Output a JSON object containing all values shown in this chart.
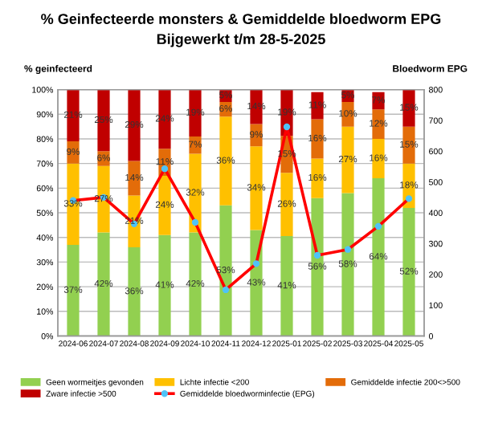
{
  "chart_data": {
    "type": "bar",
    "stacked": true,
    "title": "% Geinfecteerde monsters & Gemiddelde bloedworm EPG",
    "subtitle": "Bijgewerkt t/m 28-5-2025",
    "ylabel": "% geinfecteerd",
    "y2label": "Bloedworm EPG",
    "categories": [
      "2024-06",
      "2024-07",
      "2024-08",
      "2024-09",
      "2024-10",
      "2024-11",
      "2024-12",
      "2025-01",
      "2025-02",
      "2025-03",
      "2025-04",
      "2025-05"
    ],
    "series": [
      {
        "name": "Geen wormeitjes gevonden",
        "color": "#92d050",
        "values": [
          37,
          42,
          36,
          41,
          42,
          53,
          43,
          40.6,
          56,
          58,
          64,
          52
        ],
        "value_labels": [
          "37%",
          "42%",
          "36%",
          "41%",
          "42%",
          "53%",
          "43%",
          "41%",
          "56%",
          "58%",
          "64%",
          "52%"
        ]
      },
      {
        "name": "Lichte infectie <200",
        "color": "#ffc000",
        "values": [
          33,
          27,
          21,
          24,
          32,
          36,
          34,
          25.6,
          16,
          27,
          16,
          18
        ],
        "value_labels": [
          "33%",
          "27%",
          "21%",
          "24%",
          "32%",
          "36%",
          "34%",
          "26%",
          "16%",
          "27%",
          "16%",
          "18%"
        ]
      },
      {
        "name": "Gemiddelde infectie 200<>500",
        "color": "#e36c09",
        "values": [
          9,
          6,
          14,
          11,
          7,
          6,
          9,
          15,
          16,
          10,
          12,
          15
        ],
        "value_labels": [
          "9%",
          "6%",
          "14%",
          "11%",
          "7%",
          "6%",
          "9%",
          "15%",
          "16%",
          "10%",
          "12%",
          "15%"
        ]
      },
      {
        "name": "Zware infectie >500",
        "color": "#c00000",
        "values": [
          21,
          25,
          29,
          24,
          19,
          5,
          14,
          18.8,
          11,
          5,
          7,
          15
        ],
        "value_labels": [
          "21%",
          "25%",
          "29%",
          "24%",
          "19%",
          "5%",
          "14%",
          "19%",
          "11%",
          "5%",
          "7%",
          "15%"
        ]
      },
      {
        "name": "Gemiddelde bloedworminfectie (EPG)",
        "type": "line",
        "axis": "y2",
        "color": "#ff0000",
        "marker": "circle",
        "values": [
          440,
          450,
          364,
          543,
          369,
          150,
          235,
          679,
          262,
          281,
          356,
          446
        ]
      }
    ],
    "ylim": [
      0,
      100
    ],
    "yticks": [
      {
        "value": 0,
        "label": "0%"
      },
      {
        "value": 10,
        "label": "10%"
      },
      {
        "value": 20,
        "label": "20%"
      },
      {
        "value": 30,
        "label": "30%"
      },
      {
        "value": 40,
        "label": "40%"
      },
      {
        "value": 50,
        "label": "50%"
      },
      {
        "value": 60,
        "label": "60%"
      },
      {
        "value": 70,
        "label": "70%"
      },
      {
        "value": 80,
        "label": "80%"
      },
      {
        "value": 90,
        "label": "90%"
      },
      {
        "value": 100,
        "label": "100%"
      }
    ],
    "y2lim": [
      0,
      800
    ],
    "y2ticks": [
      0,
      100,
      200,
      300,
      400,
      500,
      600,
      700,
      800
    ],
    "grid": "y",
    "legend": "bottom"
  }
}
